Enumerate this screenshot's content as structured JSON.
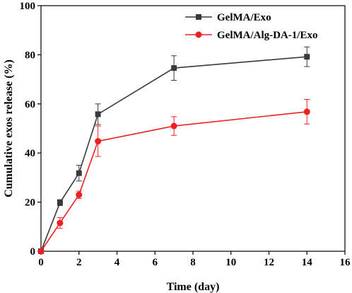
{
  "chart_data": {
    "type": "line",
    "title": "",
    "xlabel": "Time (day)",
    "ylabel": "Cumulative exos release (%)",
    "xlim": [
      0,
      16
    ],
    "ylim": [
      0,
      100
    ],
    "xticks": [
      0,
      2,
      4,
      6,
      8,
      10,
      12,
      14,
      16
    ],
    "yticks": [
      0,
      20,
      40,
      60,
      80,
      100
    ],
    "grid": false,
    "legend_position": "top-right",
    "series": [
      {
        "name": "GelMA/Exo",
        "color": "#3a3a3a",
        "marker": "square",
        "x": [
          0,
          1,
          2,
          3,
          7,
          14
        ],
        "y": [
          0,
          19.8,
          31.8,
          55.8,
          74.6,
          79.2
        ],
        "error": [
          0,
          1.2,
          3.2,
          4.2,
          5.0,
          4.0
        ]
      },
      {
        "name": "GelMA/Alg-DA-1/Exo",
        "color": "#f02020",
        "marker": "circle",
        "x": [
          0,
          1,
          2,
          3,
          7,
          14
        ],
        "y": [
          0,
          11.5,
          23.0,
          44.8,
          51.0,
          56.8
        ],
        "error": [
          0,
          2.2,
          1.5,
          6.2,
          3.8,
          5.0
        ]
      }
    ]
  }
}
